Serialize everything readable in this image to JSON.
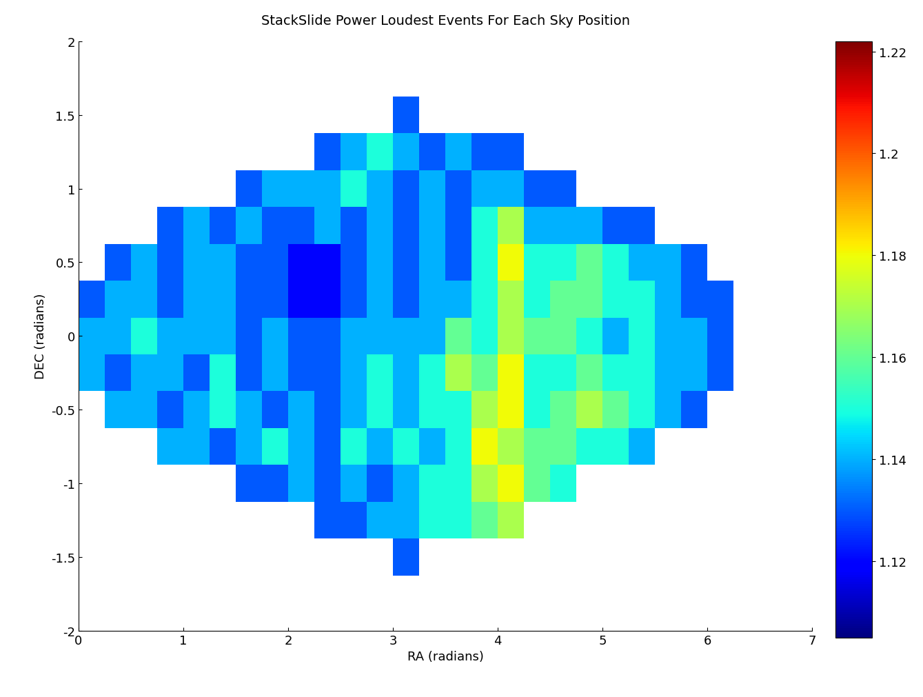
{
  "chart_data": {
    "type": "heatmap",
    "title": "StackSlide Power Loudest Events For Each Sky Position",
    "xlabel": "RA (radians)",
    "ylabel": "DEC (radians)",
    "x": [
      0.125,
      0.375,
      0.625,
      0.875,
      1.125,
      1.375,
      1.625,
      1.875,
      2.125,
      2.375,
      2.625,
      2.875,
      3.125,
      3.375,
      3.625,
      3.875,
      4.125,
      4.375,
      4.625,
      4.875,
      5.125,
      5.375,
      5.625,
      5.875,
      6.125
    ],
    "y": [
      -1.5,
      -1.25,
      -1.0,
      -0.75,
      -0.5,
      -0.25,
      0.0,
      0.25,
      0.5,
      0.75,
      1.0,
      1.25,
      1.5
    ],
    "values": [
      [
        null,
        null,
        null,
        null,
        null,
        null,
        null,
        null,
        null,
        null,
        null,
        null,
        1.13,
        null,
        null,
        null,
        null,
        null,
        null,
        null,
        null,
        null,
        null,
        null,
        null
      ],
      [
        null,
        null,
        null,
        null,
        null,
        null,
        null,
        null,
        null,
        1.13,
        1.13,
        1.14,
        1.14,
        1.15,
        1.15,
        1.16,
        1.17,
        null,
        null,
        null,
        null,
        null,
        null,
        null,
        null
      ],
      [
        null,
        null,
        null,
        null,
        null,
        null,
        1.13,
        1.13,
        1.14,
        1.13,
        1.14,
        1.13,
        1.14,
        1.15,
        1.15,
        1.17,
        1.18,
        1.16,
        1.15,
        null,
        null,
        null,
        null,
        null,
        null
      ],
      [
        null,
        null,
        null,
        1.14,
        1.14,
        1.13,
        1.14,
        1.15,
        1.14,
        1.13,
        1.15,
        1.14,
        1.15,
        1.14,
        1.15,
        1.18,
        1.17,
        1.16,
        1.16,
        1.15,
        1.15,
        1.14,
        null,
        null,
        null
      ],
      [
        null,
        1.14,
        1.14,
        1.13,
        1.14,
        1.15,
        1.14,
        1.13,
        1.14,
        1.13,
        1.14,
        1.15,
        1.14,
        1.15,
        1.15,
        1.17,
        1.18,
        1.15,
        1.16,
        1.17,
        1.16,
        1.15,
        1.14,
        1.13,
        null
      ],
      [
        1.14,
        1.13,
        1.14,
        1.14,
        1.13,
        1.15,
        1.13,
        1.14,
        1.13,
        1.13,
        1.14,
        1.15,
        1.14,
        1.15,
        1.17,
        1.16,
        1.18,
        1.15,
        1.15,
        1.16,
        1.15,
        1.15,
        1.14,
        1.14,
        1.13
      ],
      [
        1.14,
        1.14,
        1.15,
        1.14,
        1.14,
        1.14,
        1.13,
        1.14,
        1.13,
        1.13,
        1.14,
        1.14,
        1.14,
        1.14,
        1.16,
        1.15,
        1.17,
        1.16,
        1.16,
        1.15,
        1.14,
        1.15,
        1.14,
        1.14,
        1.13
      ],
      [
        1.13,
        1.14,
        1.14,
        1.13,
        1.14,
        1.14,
        1.13,
        1.13,
        1.12,
        1.12,
        1.13,
        1.14,
        1.13,
        1.14,
        1.14,
        1.15,
        1.17,
        1.15,
        1.16,
        1.16,
        1.15,
        1.15,
        1.14,
        1.13,
        1.13
      ],
      [
        null,
        1.13,
        1.14,
        1.13,
        1.14,
        1.14,
        1.13,
        1.13,
        1.12,
        1.12,
        1.13,
        1.14,
        1.13,
        1.14,
        1.13,
        1.15,
        1.18,
        1.15,
        1.15,
        1.16,
        1.15,
        1.14,
        1.14,
        1.13,
        null
      ],
      [
        null,
        null,
        null,
        1.13,
        1.14,
        1.13,
        1.14,
        1.13,
        1.13,
        1.14,
        1.13,
        1.14,
        1.13,
        1.14,
        1.13,
        1.15,
        1.17,
        1.14,
        1.14,
        1.14,
        1.13,
        1.13,
        null,
        null,
        null
      ],
      [
        null,
        null,
        null,
        null,
        null,
        null,
        1.13,
        1.14,
        1.14,
        1.14,
        1.15,
        1.14,
        1.13,
        1.14,
        1.13,
        1.14,
        1.14,
        1.13,
        1.13,
        null,
        null,
        null,
        null,
        null,
        null
      ],
      [
        null,
        null,
        null,
        null,
        null,
        null,
        null,
        null,
        null,
        1.13,
        1.14,
        1.15,
        1.14,
        1.13,
        1.14,
        1.13,
        1.13,
        null,
        null,
        null,
        null,
        null,
        null,
        null,
        null
      ],
      [
        null,
        null,
        null,
        null,
        null,
        null,
        null,
        null,
        null,
        null,
        null,
        null,
        1.13,
        null,
        null,
        null,
        null,
        null,
        null,
        null,
        null,
        null,
        null,
        null,
        null
      ]
    ],
    "xlim": [
      0,
      7
    ],
    "xticks": [
      0,
      1,
      2,
      3,
      4,
      5,
      6,
      7
    ],
    "ylim": [
      -2,
      2
    ],
    "yticks": [
      -2,
      -1.5,
      -1,
      -0.5,
      0,
      0.5,
      1,
      1.5,
      2
    ],
    "colorbar": {
      "range": [
        1.105,
        1.222
      ],
      "ticks": [
        1.12,
        1.14,
        1.16,
        1.18,
        1.2,
        1.22
      ]
    }
  }
}
